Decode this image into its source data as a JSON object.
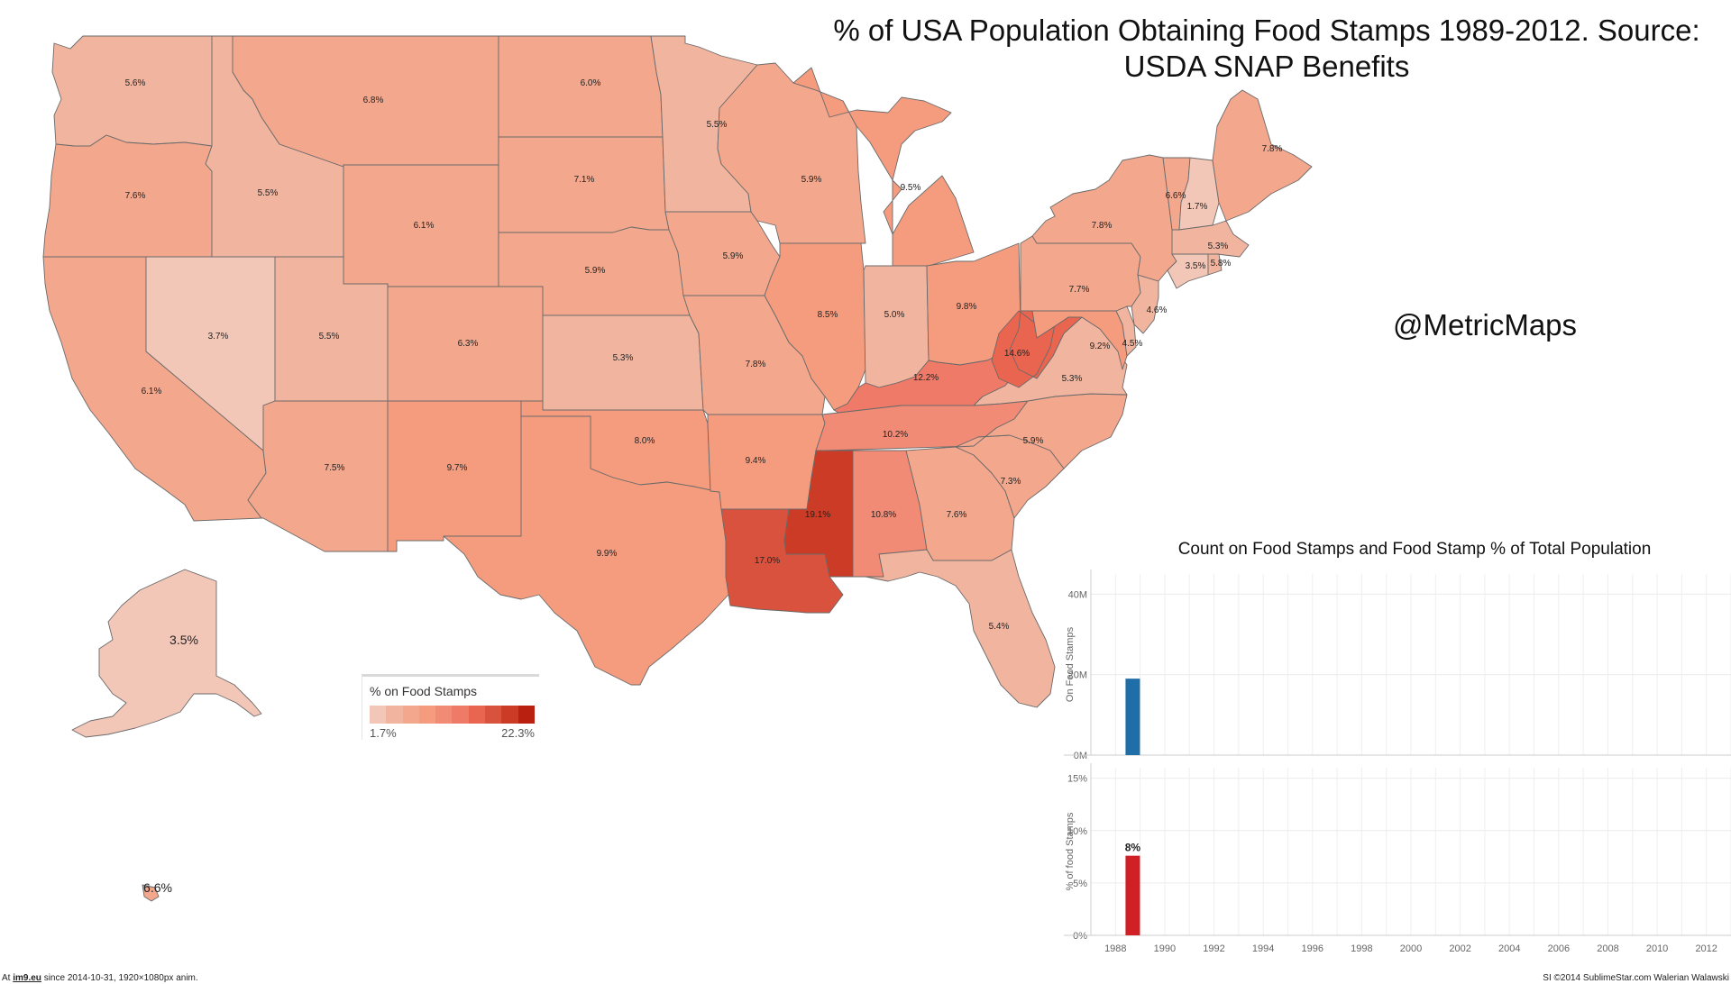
{
  "title": "% of USA Population Obtaining Food Stamps 1989-2012.  Source: USDA SNAP Benefits",
  "handle": "@MetricMaps",
  "legend": {
    "title": "% on Food Stamps",
    "min": "1.7%",
    "max": "22.3%",
    "colors": [
      "#f3c7b8",
      "#f1b59f",
      "#f3a78c",
      "#f59c7f",
      "#f28b76",
      "#f07a68",
      "#e9654f",
      "#d8523d",
      "#cc3b26",
      "#b9200f"
    ]
  },
  "states": [
    {
      "id": "WA",
      "label": "5.6%",
      "value": 5.6
    },
    {
      "id": "OR",
      "label": "7.6%",
      "value": 7.6
    },
    {
      "id": "CA",
      "label": "6.1%",
      "value": 6.1
    },
    {
      "id": "NV",
      "label": "3.7%",
      "value": 3.7
    },
    {
      "id": "ID",
      "label": "5.5%",
      "value": 5.5
    },
    {
      "id": "MT",
      "label": "6.8%",
      "value": 6.8
    },
    {
      "id": "WY",
      "label": "6.1%",
      "value": 6.1
    },
    {
      "id": "UT",
      "label": "5.5%",
      "value": 5.5
    },
    {
      "id": "AZ",
      "label": "7.5%",
      "value": 7.5
    },
    {
      "id": "CO",
      "label": "6.3%",
      "value": 6.3
    },
    {
      "id": "NM",
      "label": "9.7%",
      "value": 9.7
    },
    {
      "id": "ND",
      "label": "6.0%",
      "value": 6.0
    },
    {
      "id": "SD",
      "label": "7.1%",
      "value": 7.1
    },
    {
      "id": "NE",
      "label": "5.9%",
      "value": 5.9
    },
    {
      "id": "KS",
      "label": "5.3%",
      "value": 5.3
    },
    {
      "id": "OK",
      "label": "8.0%",
      "value": 8.0
    },
    {
      "id": "TX",
      "label": "9.9%",
      "value": 9.9
    },
    {
      "id": "MN",
      "label": "5.5%",
      "value": 5.5
    },
    {
      "id": "IA",
      "label": "5.9%",
      "value": 5.9
    },
    {
      "id": "MO",
      "label": "7.8%",
      "value": 7.8
    },
    {
      "id": "AR",
      "label": "9.4%",
      "value": 9.4
    },
    {
      "id": "LA",
      "label": "17.0%",
      "value": 17.0
    },
    {
      "id": "WI",
      "label": "5.9%",
      "value": 5.9
    },
    {
      "id": "IL",
      "label": "8.5%",
      "value": 8.5
    },
    {
      "id": "MI",
      "label": "9.5%",
      "value": 9.5
    },
    {
      "id": "IN",
      "label": "5.0%",
      "value": 5.0
    },
    {
      "id": "OH",
      "label": "9.8%",
      "value": 9.8
    },
    {
      "id": "KY",
      "label": "12.2%",
      "value": 12.2
    },
    {
      "id": "TN",
      "label": "10.2%",
      "value": 10.2
    },
    {
      "id": "MS",
      "label": "19.1%",
      "value": 19.1
    },
    {
      "id": "AL",
      "label": "10.8%",
      "value": 10.8
    },
    {
      "id": "GA",
      "label": "7.6%",
      "value": 7.6
    },
    {
      "id": "FL",
      "label": "5.4%",
      "value": 5.4
    },
    {
      "id": "SC",
      "label": "7.3%",
      "value": 7.3
    },
    {
      "id": "NC",
      "label": "5.9%",
      "value": 5.9
    },
    {
      "id": "VA",
      "label": "5.3%",
      "value": 5.3
    },
    {
      "id": "WV",
      "label": "14.6%",
      "value": 14.6
    },
    {
      "id": "MD",
      "label": "9.2%",
      "value": 9.2
    },
    {
      "id": "DE",
      "label": "4.5%",
      "value": 4.5
    },
    {
      "id": "NJ",
      "label": "4.6%",
      "value": 4.6
    },
    {
      "id": "PA",
      "label": "7.7%",
      "value": 7.7
    },
    {
      "id": "NY",
      "label": "7.8%",
      "value": 7.8
    },
    {
      "id": "VT",
      "label": "6.6%",
      "value": 6.6
    },
    {
      "id": "NH",
      "label": "1.7%",
      "value": 1.7
    },
    {
      "id": "ME",
      "label": "7.8%",
      "value": 7.8
    },
    {
      "id": "MA",
      "label": "5.3%",
      "value": 5.3
    },
    {
      "id": "CT",
      "label": "3.5%",
      "value": 3.5
    },
    {
      "id": "RI",
      "label": "5.8%",
      "value": 5.8
    },
    {
      "id": "AK",
      "label": "3.5%",
      "value": 3.5
    },
    {
      "id": "HI",
      "label": "6.6%",
      "value": 6.6
    }
  ],
  "chart_data": {
    "type": "bar",
    "title": "Count on Food Stamps and Food Stamp % of Total Population",
    "x_ticks": [
      "1988",
      "1990",
      "1992",
      "1994",
      "1996",
      "1998",
      "2000",
      "2002",
      "2004",
      "2006",
      "2008",
      "2010",
      "2012"
    ],
    "panels": [
      {
        "ylabel": "On Food Stamps",
        "yticks": [
          "0M",
          "20M",
          "40M"
        ],
        "ylim": [
          0,
          45
        ],
        "color": "#1f6ea8",
        "bars": [
          {
            "x": 1988.7,
            "value": 19
          }
        ]
      },
      {
        "ylabel": "% of food Stamps",
        "yticks": [
          "0%",
          "5%",
          "10%",
          "15%"
        ],
        "ylim": [
          0,
          16
        ],
        "color": "#d11f26",
        "bars": [
          {
            "x": 1988.7,
            "value": 7.6,
            "label": "8%"
          }
        ]
      }
    ]
  },
  "footer": {
    "left_prefix": "At ",
    "left_link": "im9.eu",
    "left_suffix": " since 2014-10-31, 1920×1080px anim.",
    "right": "SI ©2014 SublimeStar.com Walerian Walawski"
  }
}
